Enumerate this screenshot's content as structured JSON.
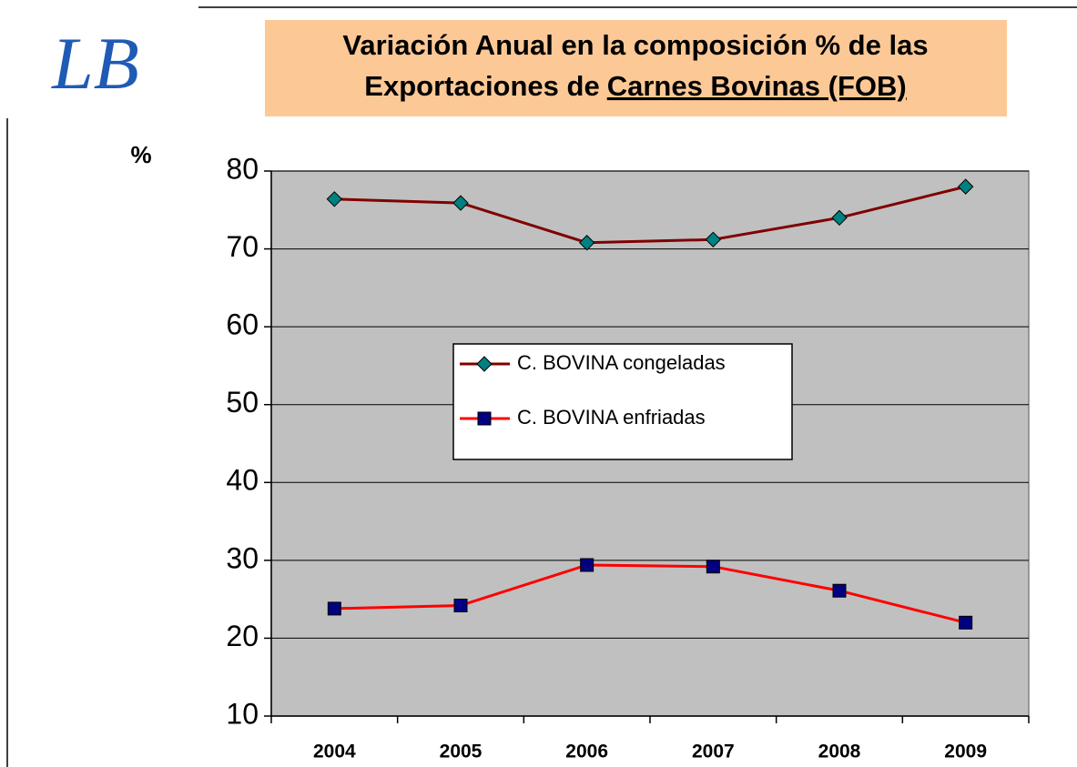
{
  "chart_data": {
    "type": "line",
    "logo": "LB",
    "title": [
      "Variación Anual en la composición % de las",
      "Exportaciones de",
      "Carnes Bovinas  (FOB)"
    ],
    "y_label": "%",
    "categories": [
      "2004",
      "2005",
      "2006",
      "2007",
      "2008",
      "2009"
    ],
    "series": [
      {
        "name": "C. BOVINA congeladas",
        "color": "#800000",
        "marker": "diamond",
        "marker_color": "#008080",
        "values": [
          76.4,
          75.9,
          70.8,
          71.2,
          74.0,
          78.0
        ]
      },
      {
        "name": "C. BOVINA enfriadas",
        "color": "#ff0000",
        "marker": "square",
        "marker_color": "#000080",
        "values": [
          23.8,
          24.2,
          29.4,
          29.2,
          26.1,
          22.0
        ]
      }
    ],
    "ylim": [
      10,
      80
    ],
    "yticks": [
      10,
      20,
      30,
      40,
      50,
      60,
      70,
      80
    ],
    "grid": true
  }
}
